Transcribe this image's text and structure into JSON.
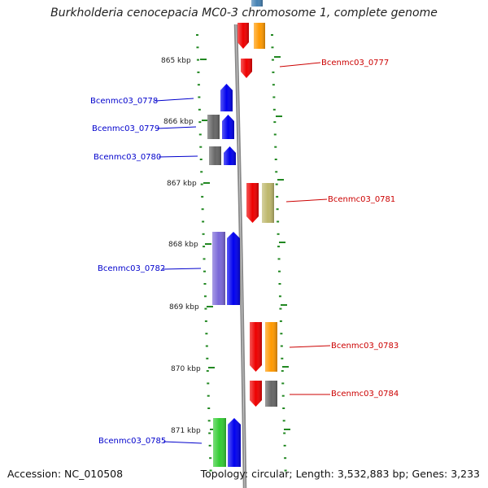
{
  "title": "Burkholderia cenocepacia MC0-3 chromosome 1, complete genome",
  "footer": {
    "accession": "Accession: NC_010508",
    "topology": "Topology: circular; Length: 3,532,883 bp; Genes: 3,233"
  },
  "colors": {
    "blue": "#0000ee",
    "red": "#ee0000",
    "orange": "#ff9900",
    "gray": "#666666",
    "khaki": "#bdb76b",
    "purple": "#7a67d8",
    "green": "#33cc33",
    "steel": "#4682b4",
    "tick": "#228822"
  },
  "scale_labels": [
    "865 kbp",
    "866 kbp",
    "867 kbp",
    "868 kbp",
    "869 kbp",
    "870 kbp",
    "871 kbp"
  ],
  "gene_labels": [
    {
      "text": "Bcenmc03_0777",
      "side": "right"
    },
    {
      "text": "Bcenmc03_0778",
      "side": "left"
    },
    {
      "text": "Bcenmc03_0779",
      "side": "left"
    },
    {
      "text": "Bcenmc03_0780",
      "side": "left"
    },
    {
      "text": "Bcenmc03_0781",
      "side": "right"
    },
    {
      "text": "Bcenmc03_0782",
      "side": "left"
    },
    {
      "text": "Bcenmc03_0783",
      "side": "right"
    },
    {
      "text": "Bcenmc03_0784",
      "side": "right"
    },
    {
      "text": "Bcenmc03_0785",
      "side": "left"
    }
  ]
}
